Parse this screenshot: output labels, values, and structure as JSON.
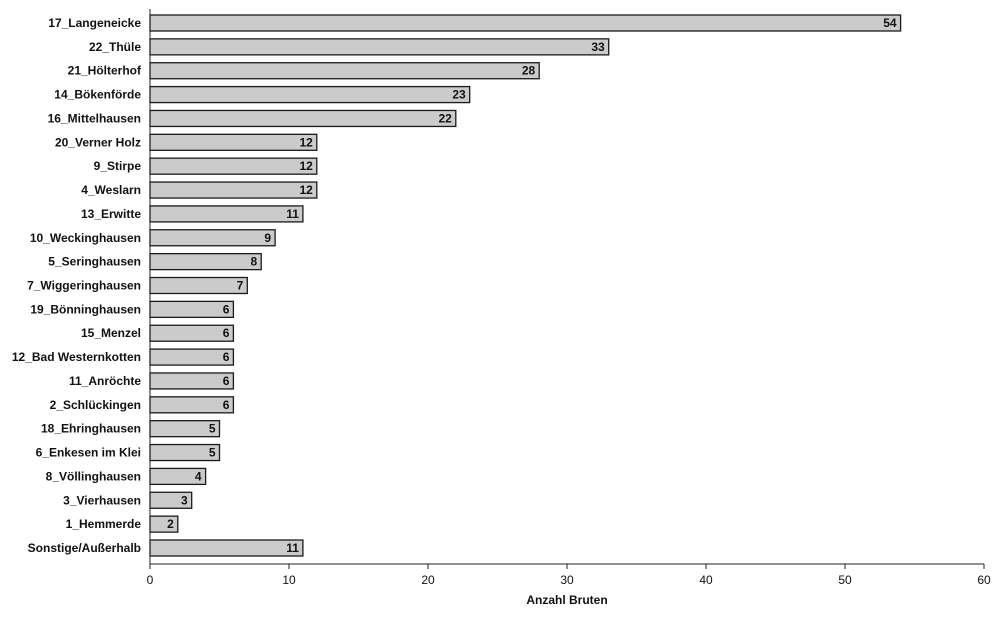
{
  "chart_data": {
    "type": "bar",
    "orientation": "horizontal",
    "categories": [
      "17_Langeneicke",
      "22_Thüle",
      "21_Hölterhof",
      "14_Bökenförde",
      "16_Mittelhausen",
      "20_Verner Holz",
      "9_Stirpe",
      "4_Weslarn",
      "13_Erwitte",
      "10_Weckinghausen",
      "5_Seringhausen",
      "7_Wiggeringhausen",
      "19_Bönninghausen",
      "15_Menzel",
      "12_Bad Westernkotten",
      "11_Anröchte",
      "2_Schlückingen",
      "18_Ehringhausen",
      "6_Enkesen im Klei",
      "8_Völlinghausen",
      "3_Vierhausen",
      "1_Hemmerde",
      "Sonstige/Außerhalb"
    ],
    "values": [
      54,
      33,
      28,
      23,
      22,
      12,
      12,
      12,
      11,
      9,
      8,
      7,
      6,
      6,
      6,
      6,
      6,
      5,
      5,
      4,
      3,
      2,
      11
    ],
    "xlabel": "Anzahl Bruten",
    "xlim": [
      0,
      60
    ],
    "xticks": [
      0,
      10,
      20,
      30,
      40,
      50,
      60
    ],
    "grid": false,
    "bar_color": "#cbcbcb",
    "bar_edge_color": "#1a1a1a"
  }
}
